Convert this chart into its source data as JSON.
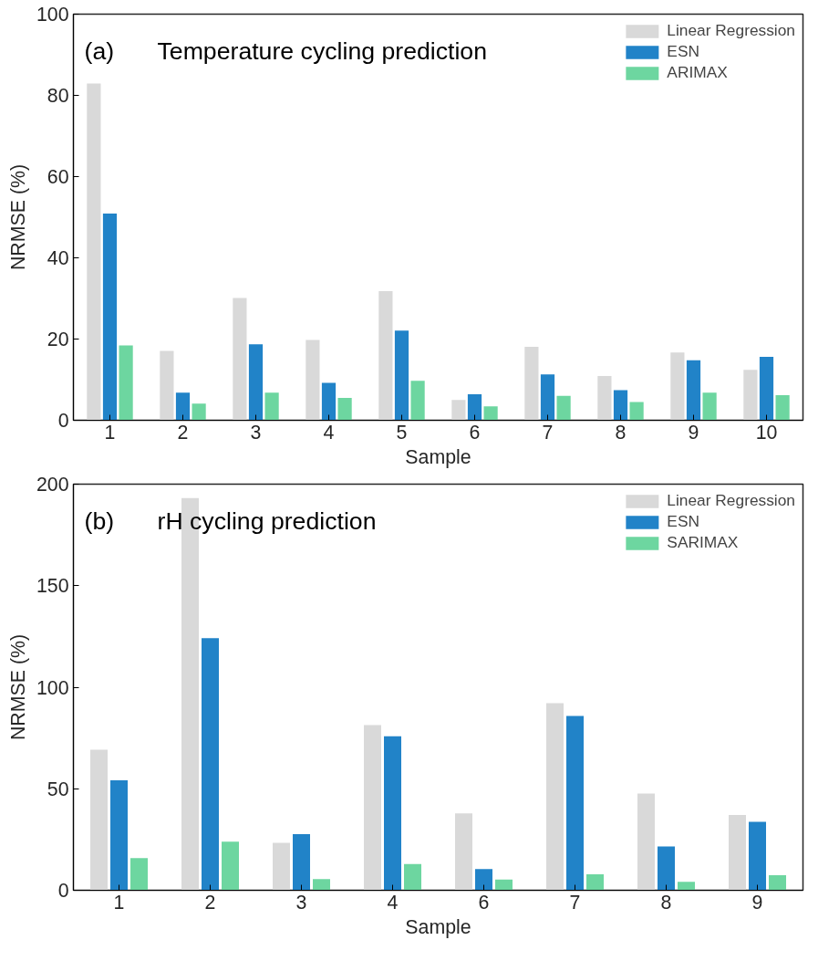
{
  "chart_data": [
    {
      "type": "bar",
      "title": "Temperature cycling prediction",
      "annotations": [
        "(a)"
      ],
      "xlabel": "Sample",
      "ylabel": "NRMSE (%)",
      "categories": [
        "1",
        "2",
        "3",
        "4",
        "5",
        "6",
        "7",
        "8",
        "9",
        "10"
      ],
      "ylim": [
        0,
        100
      ],
      "yticks": [
        0,
        20,
        40,
        60,
        80,
        100
      ],
      "grid": false,
      "legend": "top right",
      "series": [
        {
          "name": "Linear Regression",
          "color": "#d9d9d9",
          "values": [
            82.9,
            17.1,
            30.1,
            19.8,
            31.8,
            5.0,
            18.1,
            10.9,
            16.7,
            12.4
          ]
        },
        {
          "name": "ESN",
          "color": "#2183c8",
          "values": [
            50.9,
            6.8,
            18.7,
            9.2,
            22.1,
            6.4,
            11.3,
            7.4,
            14.8,
            15.6
          ]
        },
        {
          "name": "ARIMAX",
          "color": "#6dd6a0",
          "values": [
            18.4,
            4.1,
            6.8,
            5.5,
            9.7,
            3.4,
            6.0,
            4.5,
            6.8,
            6.2
          ]
        }
      ]
    },
    {
      "type": "bar",
      "title": "rH cycling prediction",
      "annotations": [
        "(b)"
      ],
      "xlabel": "Sample",
      "ylabel": "NRMSE (%)",
      "categories": [
        "1",
        "2",
        "3",
        "4",
        "6",
        "7",
        "8",
        "9"
      ],
      "ylim": [
        0,
        200
      ],
      "yticks": [
        0,
        50,
        100,
        150,
        200
      ],
      "grid": false,
      "legend": "top right",
      "series": [
        {
          "name": "Linear Regression",
          "color": "#d9d9d9",
          "values": [
            69.2,
            193.2,
            23.4,
            81.3,
            37.9,
            92.1,
            47.6,
            37.1
          ]
        },
        {
          "name": "ESN",
          "color": "#2183c8",
          "values": [
            54.2,
            124.2,
            27.6,
            75.8,
            10.5,
            85.8,
            21.6,
            33.7
          ]
        },
        {
          "name": "SARIMAX",
          "color": "#6dd6a0",
          "values": [
            15.8,
            23.9,
            5.5,
            12.9,
            5.3,
            7.9,
            4.2,
            7.4
          ]
        }
      ]
    }
  ]
}
